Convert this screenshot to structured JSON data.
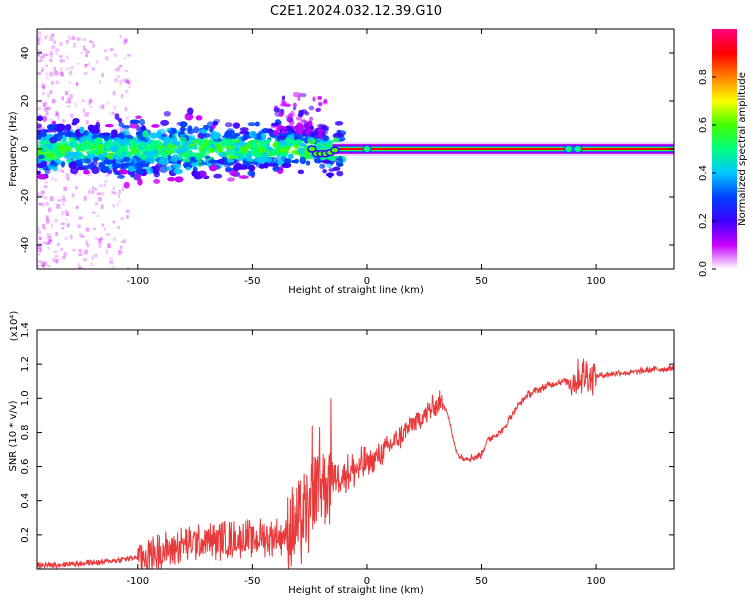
{
  "title": "C2E1.2024.032.12.39.G10",
  "chart_data": [
    {
      "type": "heatmap",
      "xlabel": "Height of straight line (km)",
      "ylabel": "Frequency (Hz)",
      "xlim": [
        -144,
        134
      ],
      "ylim": [
        -50,
        50
      ],
      "xticks": [
        -100,
        -50,
        0,
        50,
        100
      ],
      "yticks": [
        -40,
        -20,
        0,
        20,
        40
      ],
      "carrier_line": {
        "x_start": -15,
        "x_end": 134,
        "frequency": 0,
        "amplitude": 0.9
      },
      "colorbar": {
        "label": "Normalized spectral amplitude",
        "range": [
          0.0,
          1.0
        ],
        "ticks": [
          0.0,
          0.2,
          0.4,
          0.6,
          0.8
        ],
        "colors": [
          "#ffffff",
          "#c800ff",
          "#3c00ff",
          "#0040ff",
          "#00c8ff",
          "#00ff80",
          "#40ff00",
          "#ffff00",
          "#ff8000",
          "#ff0000",
          "#ff0080"
        ]
      }
    },
    {
      "type": "line",
      "xlabel": "Height of straight line (km)",
      "ylabel": "SNR (10 * v/v)",
      "y_multiplier": "(x10⁴)",
      "color": "#e8393b",
      "xlim": [
        -144,
        134
      ],
      "ylim": [
        0,
        1.4
      ],
      "xticks": [
        -100,
        -50,
        0,
        50,
        100
      ],
      "yticks": [
        0.2,
        0.4,
        0.6,
        0.8,
        1.0,
        1.2,
        1.4
      ],
      "trend_x": [
        -144,
        -130,
        -115,
        -100,
        -90,
        -80,
        -70,
        -60,
        -50,
        -40,
        -35,
        -30,
        -25,
        -20,
        -15,
        -10,
        -5,
        0,
        5,
        10,
        15,
        20,
        25,
        30,
        33,
        35,
        38,
        40,
        43,
        45,
        48,
        50,
        52,
        55,
        58,
        60,
        62,
        65,
        70,
        75,
        80,
        85,
        90,
        95,
        100,
        105,
        110,
        115,
        120,
        125,
        130,
        134
      ],
      "trend_y": [
        0.02,
        0.03,
        0.04,
        0.07,
        0.1,
        0.14,
        0.16,
        0.17,
        0.18,
        0.19,
        0.2,
        0.24,
        0.35,
        0.5,
        0.54,
        0.56,
        0.58,
        0.62,
        0.66,
        0.72,
        0.78,
        0.85,
        0.9,
        0.96,
        0.98,
        0.92,
        0.74,
        0.66,
        0.65,
        0.65,
        0.66,
        0.67,
        0.74,
        0.78,
        0.8,
        0.82,
        0.88,
        0.94,
        1.02,
        1.05,
        1.08,
        1.1,
        1.1,
        1.14,
        1.13,
        1.14,
        1.15,
        1.15,
        1.16,
        1.17,
        1.17,
        1.18
      ]
    }
  ]
}
